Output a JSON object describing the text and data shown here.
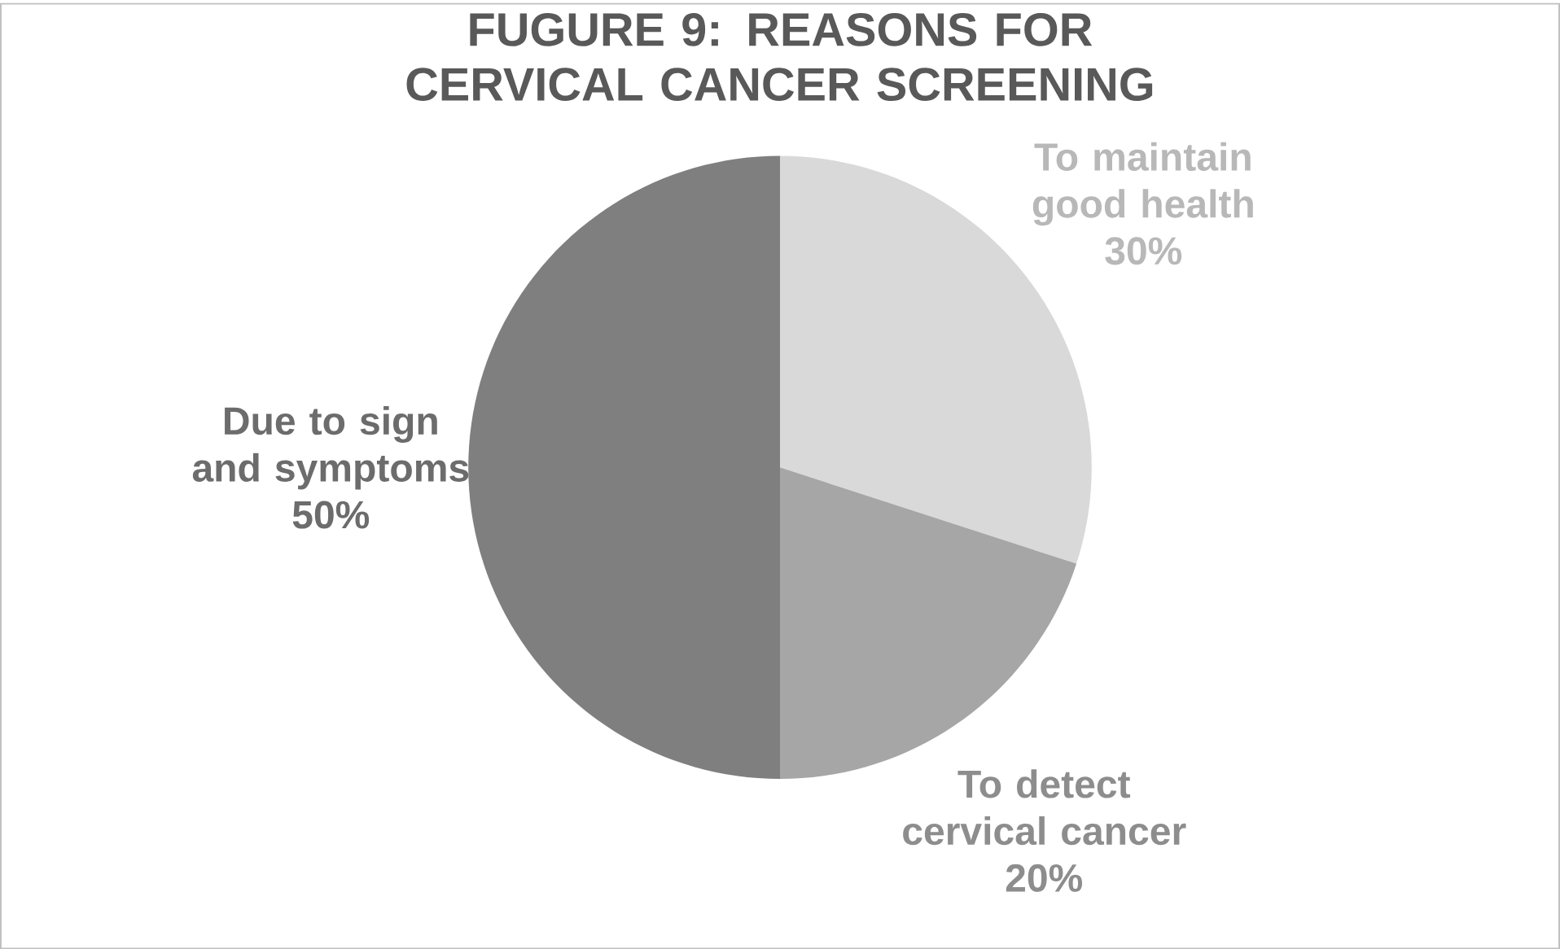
{
  "chart_data": {
    "type": "pie",
    "title": "FUGURE 9: REASONS FOR CERVICAL CANCER SCREENING",
    "categories": [
      "To maintain good health",
      "To detect cervical cancer",
      "Due to sign and symptoms"
    ],
    "values": [
      30,
      20,
      50
    ],
    "colors": [
      "#d9d9d9",
      "#a6a6a6",
      "#7f7f7f"
    ],
    "value_labels": [
      "30%",
      "20%",
      "50%"
    ]
  }
}
